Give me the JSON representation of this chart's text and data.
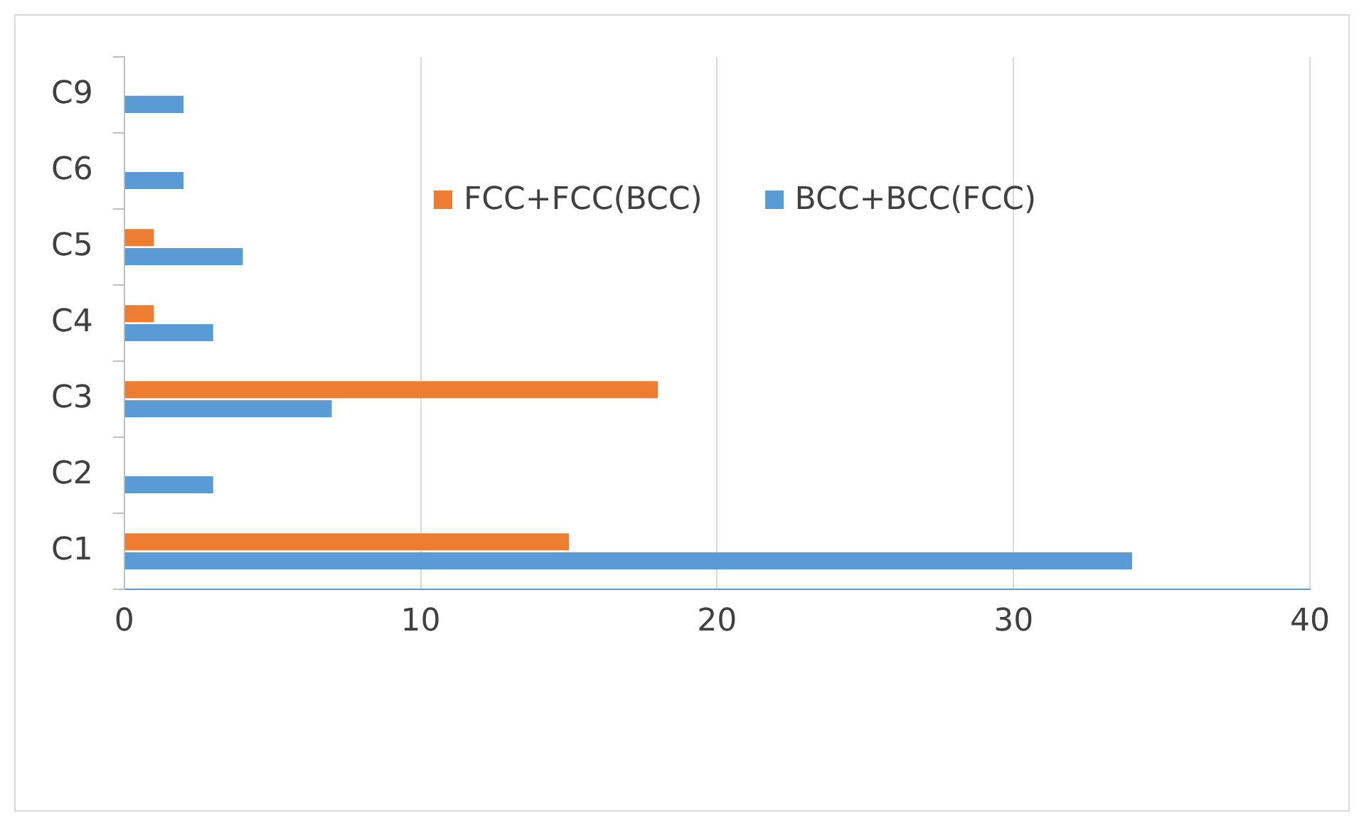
{
  "chart_data": {
    "type": "bar",
    "orientation": "horizontal",
    "categories": [
      "C9",
      "C6",
      "C5",
      "C4",
      "C3",
      "C2",
      "C1"
    ],
    "series": [
      {
        "name": "FCC+FCC(BCC)",
        "color": "#ed7d31",
        "values": [
          null,
          null,
          1,
          1,
          18,
          null,
          15
        ]
      },
      {
        "name": "BCC+BCC(FCC)",
        "color": "#5b9bd5",
        "values": [
          2,
          2,
          4,
          3,
          7,
          3,
          34
        ]
      }
    ],
    "xlim": [
      0,
      40
    ],
    "xticks": [
      0,
      10,
      20,
      30,
      40
    ],
    "grid": "x",
    "legend": "top right"
  }
}
